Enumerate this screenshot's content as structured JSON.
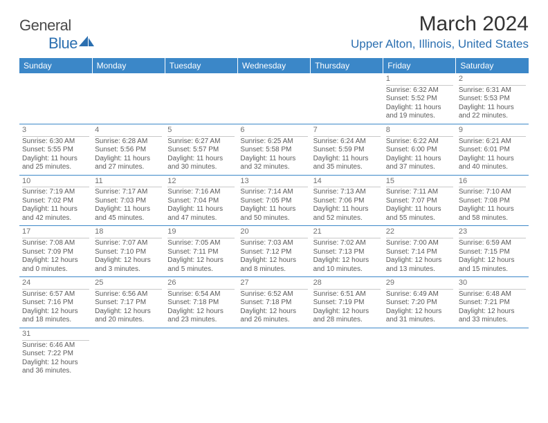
{
  "logo": {
    "general": "General",
    "blue": "Blue"
  },
  "title": "March 2024",
  "location": "Upper Alton, Illinois, United States",
  "colors": {
    "header_bg": "#3b87c8",
    "header_text": "#ffffff",
    "accent": "#2b6fb0",
    "row_divider": "#3b87c8",
    "cell_divider": "#c8c8c8",
    "body_text": "#5a5a5a",
    "title_text": "#333333"
  },
  "weekdays": [
    "Sunday",
    "Monday",
    "Tuesday",
    "Wednesday",
    "Thursday",
    "Friday",
    "Saturday"
  ],
  "weeks": [
    [
      {
        "day": "",
        "lines": []
      },
      {
        "day": "",
        "lines": []
      },
      {
        "day": "",
        "lines": []
      },
      {
        "day": "",
        "lines": []
      },
      {
        "day": "",
        "lines": []
      },
      {
        "day": "1",
        "lines": [
          "Sunrise: 6:32 AM",
          "Sunset: 5:52 PM",
          "Daylight: 11 hours",
          "and 19 minutes."
        ]
      },
      {
        "day": "2",
        "lines": [
          "Sunrise: 6:31 AM",
          "Sunset: 5:53 PM",
          "Daylight: 11 hours",
          "and 22 minutes."
        ]
      }
    ],
    [
      {
        "day": "3",
        "lines": [
          "Sunrise: 6:30 AM",
          "Sunset: 5:55 PM",
          "Daylight: 11 hours",
          "and 25 minutes."
        ]
      },
      {
        "day": "4",
        "lines": [
          "Sunrise: 6:28 AM",
          "Sunset: 5:56 PM",
          "Daylight: 11 hours",
          "and 27 minutes."
        ]
      },
      {
        "day": "5",
        "lines": [
          "Sunrise: 6:27 AM",
          "Sunset: 5:57 PM",
          "Daylight: 11 hours",
          "and 30 minutes."
        ]
      },
      {
        "day": "6",
        "lines": [
          "Sunrise: 6:25 AM",
          "Sunset: 5:58 PM",
          "Daylight: 11 hours",
          "and 32 minutes."
        ]
      },
      {
        "day": "7",
        "lines": [
          "Sunrise: 6:24 AM",
          "Sunset: 5:59 PM",
          "Daylight: 11 hours",
          "and 35 minutes."
        ]
      },
      {
        "day": "8",
        "lines": [
          "Sunrise: 6:22 AM",
          "Sunset: 6:00 PM",
          "Daylight: 11 hours",
          "and 37 minutes."
        ]
      },
      {
        "day": "9",
        "lines": [
          "Sunrise: 6:21 AM",
          "Sunset: 6:01 PM",
          "Daylight: 11 hours",
          "and 40 minutes."
        ]
      }
    ],
    [
      {
        "day": "10",
        "lines": [
          "Sunrise: 7:19 AM",
          "Sunset: 7:02 PM",
          "Daylight: 11 hours",
          "and 42 minutes."
        ]
      },
      {
        "day": "11",
        "lines": [
          "Sunrise: 7:17 AM",
          "Sunset: 7:03 PM",
          "Daylight: 11 hours",
          "and 45 minutes."
        ]
      },
      {
        "day": "12",
        "lines": [
          "Sunrise: 7:16 AM",
          "Sunset: 7:04 PM",
          "Daylight: 11 hours",
          "and 47 minutes."
        ]
      },
      {
        "day": "13",
        "lines": [
          "Sunrise: 7:14 AM",
          "Sunset: 7:05 PM",
          "Daylight: 11 hours",
          "and 50 minutes."
        ]
      },
      {
        "day": "14",
        "lines": [
          "Sunrise: 7:13 AM",
          "Sunset: 7:06 PM",
          "Daylight: 11 hours",
          "and 52 minutes."
        ]
      },
      {
        "day": "15",
        "lines": [
          "Sunrise: 7:11 AM",
          "Sunset: 7:07 PM",
          "Daylight: 11 hours",
          "and 55 minutes."
        ]
      },
      {
        "day": "16",
        "lines": [
          "Sunrise: 7:10 AM",
          "Sunset: 7:08 PM",
          "Daylight: 11 hours",
          "and 58 minutes."
        ]
      }
    ],
    [
      {
        "day": "17",
        "lines": [
          "Sunrise: 7:08 AM",
          "Sunset: 7:09 PM",
          "Daylight: 12 hours",
          "and 0 minutes."
        ]
      },
      {
        "day": "18",
        "lines": [
          "Sunrise: 7:07 AM",
          "Sunset: 7:10 PM",
          "Daylight: 12 hours",
          "and 3 minutes."
        ]
      },
      {
        "day": "19",
        "lines": [
          "Sunrise: 7:05 AM",
          "Sunset: 7:11 PM",
          "Daylight: 12 hours",
          "and 5 minutes."
        ]
      },
      {
        "day": "20",
        "lines": [
          "Sunrise: 7:03 AM",
          "Sunset: 7:12 PM",
          "Daylight: 12 hours",
          "and 8 minutes."
        ]
      },
      {
        "day": "21",
        "lines": [
          "Sunrise: 7:02 AM",
          "Sunset: 7:13 PM",
          "Daylight: 12 hours",
          "and 10 minutes."
        ]
      },
      {
        "day": "22",
        "lines": [
          "Sunrise: 7:00 AM",
          "Sunset: 7:14 PM",
          "Daylight: 12 hours",
          "and 13 minutes."
        ]
      },
      {
        "day": "23",
        "lines": [
          "Sunrise: 6:59 AM",
          "Sunset: 7:15 PM",
          "Daylight: 12 hours",
          "and 15 minutes."
        ]
      }
    ],
    [
      {
        "day": "24",
        "lines": [
          "Sunrise: 6:57 AM",
          "Sunset: 7:16 PM",
          "Daylight: 12 hours",
          "and 18 minutes."
        ]
      },
      {
        "day": "25",
        "lines": [
          "Sunrise: 6:56 AM",
          "Sunset: 7:17 PM",
          "Daylight: 12 hours",
          "and 20 minutes."
        ]
      },
      {
        "day": "26",
        "lines": [
          "Sunrise: 6:54 AM",
          "Sunset: 7:18 PM",
          "Daylight: 12 hours",
          "and 23 minutes."
        ]
      },
      {
        "day": "27",
        "lines": [
          "Sunrise: 6:52 AM",
          "Sunset: 7:18 PM",
          "Daylight: 12 hours",
          "and 26 minutes."
        ]
      },
      {
        "day": "28",
        "lines": [
          "Sunrise: 6:51 AM",
          "Sunset: 7:19 PM",
          "Daylight: 12 hours",
          "and 28 minutes."
        ]
      },
      {
        "day": "29",
        "lines": [
          "Sunrise: 6:49 AM",
          "Sunset: 7:20 PM",
          "Daylight: 12 hours",
          "and 31 minutes."
        ]
      },
      {
        "day": "30",
        "lines": [
          "Sunrise: 6:48 AM",
          "Sunset: 7:21 PM",
          "Daylight: 12 hours",
          "and 33 minutes."
        ]
      }
    ],
    [
      {
        "day": "31",
        "lines": [
          "Sunrise: 6:46 AM",
          "Sunset: 7:22 PM",
          "Daylight: 12 hours",
          "and 36 minutes."
        ]
      },
      {
        "day": "",
        "lines": []
      },
      {
        "day": "",
        "lines": []
      },
      {
        "day": "",
        "lines": []
      },
      {
        "day": "",
        "lines": []
      },
      {
        "day": "",
        "lines": []
      },
      {
        "day": "",
        "lines": []
      }
    ]
  ]
}
